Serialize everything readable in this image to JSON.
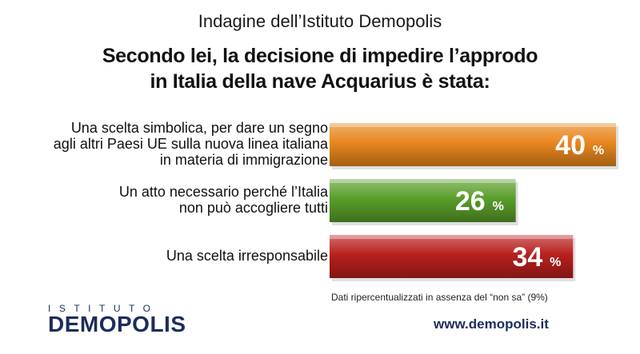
{
  "header": {
    "subtitle": "Indagine dell’Istituto Demopolis",
    "title_line1": "Secondo lei, la decisione di impedire l’approdo",
    "title_line2": "in Italia della nave Acquarius è stata:"
  },
  "chart_data": {
    "type": "bar",
    "orientation": "horizontal",
    "title": "Secondo lei, la decisione di impedire l’approdo in Italia della nave Acquarius è stata:",
    "categories": [
      [
        "Una scelta simbolica, per dare un segno",
        "agli altri Paesi UE sulla nuova linea italiana",
        "in materia di immigrazione"
      ],
      [
        "Un atto necessario perché l’Italia",
        "non può accogliere tutti"
      ],
      [
        "Una scelta irresponsabile"
      ]
    ],
    "values": [
      40,
      26,
      34
    ],
    "value_labels": [
      "40",
      "26",
      "34"
    ],
    "unit": "%",
    "colors": [
      "#e8871e",
      "#5a9e2a",
      "#b8201e"
    ],
    "xlim": [
      0,
      40
    ],
    "grid": false
  },
  "footnote": "Dati ripercentualizzati in assenza del “non sa” (9%)",
  "logo": {
    "top_text": "ISTITUTO",
    "main_text": "DEMOPOLIS"
  },
  "website": "www.demopolis.it"
}
